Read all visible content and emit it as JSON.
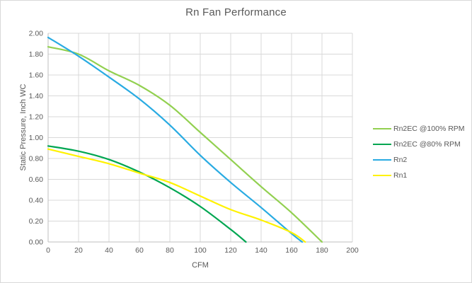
{
  "chart_data": {
    "type": "line",
    "title": "Rn Fan Performance",
    "xlabel": "CFM",
    "ylabel": "Static Pressure, Inch WC",
    "xlim": [
      0,
      200
    ],
    "ylim": [
      0,
      2.0
    ],
    "xticks": [
      0,
      20,
      40,
      60,
      80,
      100,
      120,
      140,
      160,
      180,
      200
    ],
    "yticks": [
      0,
      0.2,
      0.4,
      0.6,
      0.8,
      1.0,
      1.2,
      1.4,
      1.6,
      1.8,
      2.0
    ],
    "grid": true,
    "legend_position": "right",
    "series": [
      {
        "name": "Rn2EC @100% RPM",
        "color": "#92D050",
        "x": [
          0,
          20,
          40,
          60,
          80,
          100,
          120,
          140,
          160,
          180
        ],
        "y": [
          1.87,
          1.8,
          1.64,
          1.5,
          1.31,
          1.05,
          0.79,
          0.53,
          0.28,
          0.0
        ]
      },
      {
        "name": "Rn2EC @80% RPM",
        "color": "#00A651",
        "x": [
          0,
          20,
          40,
          60,
          80,
          100,
          120,
          130
        ],
        "y": [
          0.92,
          0.87,
          0.79,
          0.67,
          0.52,
          0.34,
          0.12,
          0.0
        ]
      },
      {
        "name": "Rn2",
        "color": "#29ABE2",
        "x": [
          0,
          20,
          40,
          60,
          80,
          100,
          120,
          140,
          160,
          167
        ],
        "y": [
          1.96,
          1.78,
          1.58,
          1.37,
          1.12,
          0.83,
          0.57,
          0.33,
          0.08,
          0.0
        ]
      },
      {
        "name": "Rn1",
        "color": "#FFF200",
        "x": [
          0,
          20,
          40,
          60,
          80,
          100,
          120,
          140,
          160,
          169
        ],
        "y": [
          0.89,
          0.82,
          0.75,
          0.66,
          0.57,
          0.44,
          0.31,
          0.21,
          0.09,
          0.0
        ]
      }
    ]
  },
  "style": {
    "grid_color": "#D9D9D9",
    "axis_color": "#BFBFBF",
    "text_color": "#595959"
  }
}
